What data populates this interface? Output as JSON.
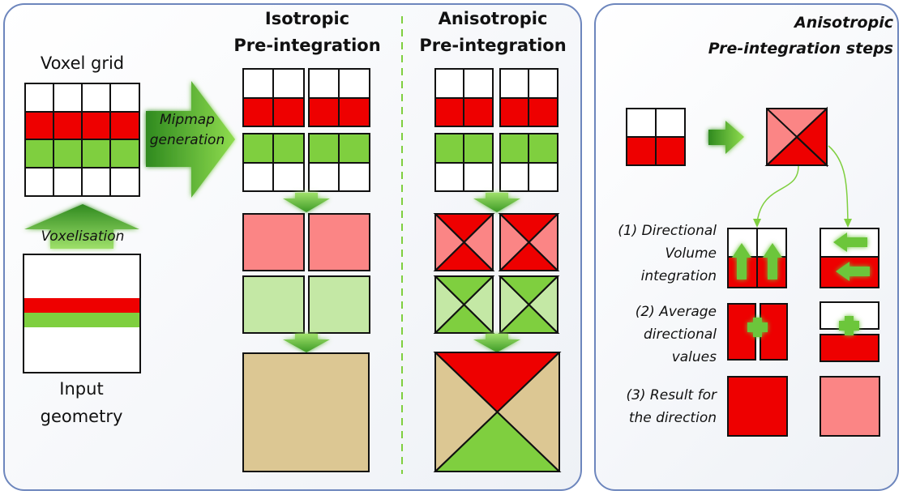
{
  "left_panel": {
    "voxel_grid_label": "Voxel grid",
    "mipmap_label_line1": "Mipmap",
    "mipmap_label_line2": "generation",
    "voxelisation_label": "Voxelisation",
    "input_geometry_line1": "Input",
    "input_geometry_line2": "geometry",
    "isotropic_title_line1": "Isotropic",
    "isotropic_title_line2": "Pre-integration",
    "anisotropic_title_line1": "Anisotropic",
    "anisotropic_title_line2": "Pre-integration"
  },
  "right_panel": {
    "title_line1": "Anisotropic",
    "title_line2": "Pre-integration steps",
    "step1_line1": "(1) Directional",
    "step1_line2": "Volume",
    "step1_line3": "integration",
    "step2_line1": "(2) Average",
    "step2_line2": "directional",
    "step2_line3": "values",
    "step3_line1": "(3) Result for",
    "step3_line2": "the direction"
  },
  "colors": {
    "red": "#ee0000",
    "green": "#7fcf3f",
    "light_red": "#fb8585",
    "light_green": "#c4e8a5",
    "tan": "#dcc793",
    "panel_border": "#6d86bd",
    "arrow_green": "#5fb52c"
  }
}
